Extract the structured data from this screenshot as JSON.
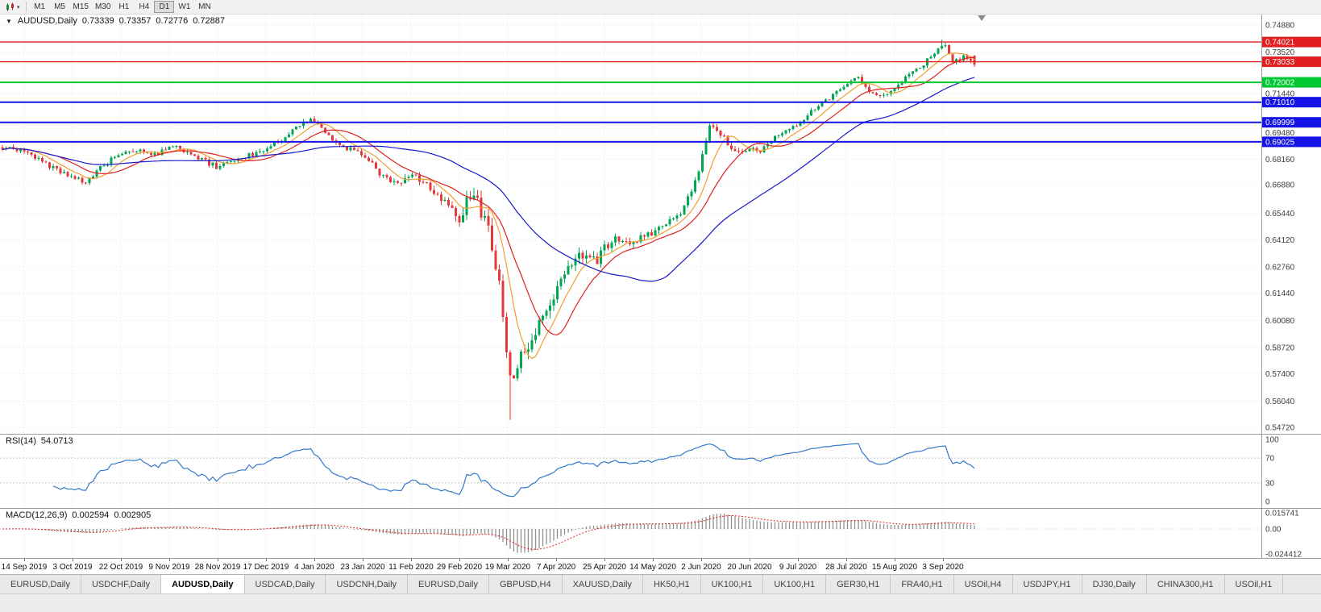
{
  "toolbar": {
    "chart_mode_icon": "candlestick-chart",
    "timeframes": [
      "M1",
      "M5",
      "M15",
      "M30",
      "H1",
      "H4",
      "D1",
      "W1",
      "MN"
    ],
    "active_timeframe": "D1"
  },
  "main_chart": {
    "collapse_icon": "▼",
    "symbol": "AUDUSD,Daily",
    "open": "0.73339",
    "high": "0.73357",
    "low": "0.72776",
    "close": "0.72887"
  },
  "rsi_panel": {
    "label": "RSI(14)",
    "value": "54.0713",
    "axis_labels": [
      "100",
      "70",
      "30",
      "0"
    ]
  },
  "macd_panel": {
    "label": "MACD(12,26,9)",
    "main_value": "0.002594",
    "signal_value": "0.002905",
    "axis_labels": [
      "0.015741",
      "0.00",
      "-0.024412"
    ]
  },
  "tabs": [
    {
      "label": "EURUSD,Daily",
      "active": false
    },
    {
      "label": "USDCHF,Daily",
      "active": false
    },
    {
      "label": "AUDUSD,Daily",
      "active": true
    },
    {
      "label": "USDCAD,Daily",
      "active": false
    },
    {
      "label": "USDCNH,Daily",
      "active": false
    },
    {
      "label": "EURUSD,Daily",
      "active": false
    },
    {
      "label": "GBPUSD,H4",
      "active": false
    },
    {
      "label": "XAUUSD,Daily",
      "active": false
    },
    {
      "label": "HK50,H1",
      "active": false
    },
    {
      "label": "UK100,H1",
      "active": false
    },
    {
      "label": "UK100,H1",
      "active": false
    },
    {
      "label": "GER30,H1",
      "active": false
    },
    {
      "label": "FRA40,H1",
      "active": false
    },
    {
      "label": "USOil,H4",
      "active": false
    },
    {
      "label": "USDJPY,H1",
      "active": false
    },
    {
      "label": "DJ30,Daily",
      "active": false
    },
    {
      "label": "CHINA300,H1",
      "active": false
    },
    {
      "label": "USOil,H1",
      "active": false
    }
  ],
  "chart_data": {
    "type": "candlestick",
    "symbol": "AUDUSD",
    "timeframe": "Daily",
    "title": "AUDUSD,Daily 0.73339 0.73357 0.72776 0.72887",
    "x_tick_labels": [
      "14 Sep 2019",
      "3 Oct 2019",
      "22 Oct 2019",
      "9 Nov 2019",
      "28 Nov 2019",
      "17 Dec 2019",
      "4 Jan 2020",
      "23 Jan 2020",
      "11 Feb 2020",
      "29 Feb 2020",
      "19 Mar 2020",
      "7 Apr 2020",
      "25 Apr 2020",
      "14 May 2020",
      "2 Jun 2020",
      "20 Jun 2020",
      "9 Jul 2020",
      "28 Jul 2020",
      "15 Aug 2020",
      "3 Sep 2020"
    ],
    "y_axis": {
      "min": 0.544,
      "max": 0.754,
      "tick_labels": [
        "0.74880",
        "0.73520",
        "0.71440",
        "0.69480",
        "0.68160",
        "0.66880",
        "0.65440",
        "0.64120",
        "0.62760",
        "0.61440",
        "0.60080",
        "0.58720",
        "0.57400",
        "0.56040",
        "0.54720"
      ]
    },
    "horizontal_lines": [
      {
        "price": 0.74021,
        "color": "#e02020",
        "width": 1.4,
        "label": "0.74021"
      },
      {
        "price": 0.73033,
        "color": "#e02020",
        "width": 1.4,
        "label": "0.73033"
      },
      {
        "price": 0.72002,
        "color": "#00c832",
        "width": 2,
        "label": "0.72002"
      },
      {
        "price": 0.7101,
        "color": "#1414e6",
        "width": 2,
        "label": "0.71010"
      },
      {
        "price": 0.69999,
        "color": "#1414e6",
        "width": 2,
        "label": "0.69999"
      },
      {
        "price": 0.69025,
        "color": "#1414e6",
        "width": 2,
        "label": "0.69025"
      }
    ],
    "moving_averages": [
      {
        "period": 8,
        "color": "#f0a030"
      },
      {
        "period": 16,
        "color": "#e02020"
      },
      {
        "period": 45,
        "color": "#1919cc"
      }
    ],
    "indicators": {
      "rsi": {
        "period": 14,
        "current": 54.0713,
        "levels": [
          30,
          70
        ],
        "range": [
          0,
          100
        ]
      },
      "macd": {
        "fast": 12,
        "slow": 26,
        "signal": 9,
        "current_main": 0.002594,
        "current_signal": 0.002905,
        "range": [
          -0.024412,
          0.015741
        ]
      }
    },
    "special": {
      "crash_low": 0.551,
      "peak_high": 0.7414,
      "last_close": 0.72887
    },
    "price_path": [
      [
        0.0,
        0.6875
      ],
      [
        0.022,
        0.686
      ],
      [
        0.045,
        0.679
      ],
      [
        0.072,
        0.672
      ],
      [
        0.085,
        0.67
      ],
      [
        0.1,
        0.677
      ],
      [
        0.122,
        0.685
      ],
      [
        0.14,
        0.6865
      ],
      [
        0.16,
        0.6835
      ],
      [
        0.172,
        0.689
      ],
      [
        0.19,
        0.6855
      ],
      [
        0.21,
        0.68
      ],
      [
        0.221,
        0.6775
      ],
      [
        0.24,
        0.6815
      ],
      [
        0.26,
        0.6845
      ],
      [
        0.271,
        0.6865
      ],
      [
        0.29,
        0.692
      ],
      [
        0.31,
        0.7
      ],
      [
        0.321,
        0.701
      ],
      [
        0.335,
        0.6935
      ],
      [
        0.355,
        0.687
      ],
      [
        0.371,
        0.6845
      ],
      [
        0.39,
        0.673
      ],
      [
        0.405,
        0.669
      ],
      [
        0.42,
        0.674
      ],
      [
        0.435,
        0.67
      ],
      [
        0.45,
        0.6625
      ],
      [
        0.462,
        0.656
      ],
      [
        0.47,
        0.653
      ],
      [
        0.48,
        0.6635
      ],
      [
        0.49,
        0.658
      ],
      [
        0.5,
        0.645
      ],
      [
        0.508,
        0.628
      ],
      [
        0.514,
        0.608
      ],
      [
        0.52,
        0.578
      ],
      [
        0.527,
        0.575
      ],
      [
        0.535,
        0.585
      ],
      [
        0.545,
        0.592
      ],
      [
        0.557,
        0.602
      ],
      [
        0.57,
        0.615
      ],
      [
        0.582,
        0.627
      ],
      [
        0.595,
        0.633
      ],
      [
        0.61,
        0.63
      ],
      [
        0.619,
        0.6365
      ],
      [
        0.632,
        0.642
      ],
      [
        0.648,
        0.6395
      ],
      [
        0.669,
        0.645
      ],
      [
        0.685,
        0.65
      ],
      [
        0.7,
        0.656
      ],
      [
        0.712,
        0.668
      ],
      [
        0.719,
        0.682
      ],
      [
        0.728,
        0.7
      ],
      [
        0.738,
        0.695
      ],
      [
        0.75,
        0.688
      ],
      [
        0.762,
        0.685
      ],
      [
        0.769,
        0.687
      ],
      [
        0.78,
        0.6855
      ],
      [
        0.795,
        0.692
      ],
      [
        0.81,
        0.696
      ],
      [
        0.819,
        0.6985
      ],
      [
        0.832,
        0.706
      ],
      [
        0.845,
        0.711
      ],
      [
        0.858,
        0.7145
      ],
      [
        0.868,
        0.718
      ],
      [
        0.88,
        0.7225
      ],
      [
        0.892,
        0.716
      ],
      [
        0.905,
        0.713
      ],
      [
        0.918,
        0.7175
      ],
      [
        0.93,
        0.7225
      ],
      [
        0.942,
        0.727
      ],
      [
        0.955,
        0.733
      ],
      [
        0.968,
        0.7395
      ],
      [
        0.978,
        0.73
      ],
      [
        0.988,
        0.733
      ],
      [
        1.0,
        0.7289
      ]
    ],
    "colors": {
      "up": "#00a651",
      "down": "#e23a3a",
      "grid": "#e2e2e2",
      "bg": "#ffffff"
    }
  }
}
